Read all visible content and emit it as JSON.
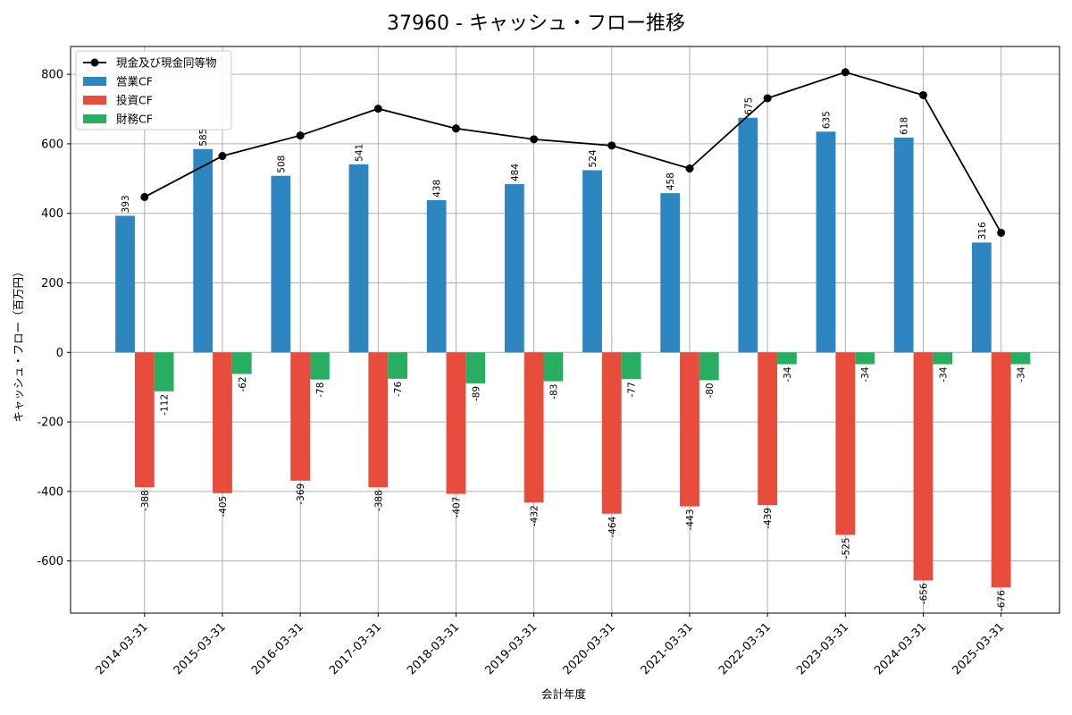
{
  "chart_data": {
    "type": "bar",
    "title": "37960 - キャッシュ・フロー推移",
    "xlabel": "会計年度",
    "ylabel": "キャッシュ・フロー（百万円）",
    "ylim": [
      -750,
      880
    ],
    "yticks": [
      -600,
      -400,
      -200,
      0,
      200,
      400,
      600,
      800
    ],
    "grid": true,
    "legend_position": "top-left",
    "categories": [
      "2014-03-31",
      "2015-03-31",
      "2016-03-31",
      "2017-03-31",
      "2018-03-31",
      "2019-03-31",
      "2020-03-31",
      "2021-03-31",
      "2022-03-31",
      "2023-03-31",
      "2024-03-31",
      "2025-03-31"
    ],
    "series": [
      {
        "name": "営業CF",
        "type": "bar",
        "color": "#2e86c1",
        "values": [
          393,
          585,
          508,
          541,
          438,
          484,
          524,
          458,
          675,
          635,
          618,
          316
        ]
      },
      {
        "name": "投資CF",
        "type": "bar",
        "color": "#e74c3c",
        "values": [
          -388,
          -405,
          -369,
          -388,
          -407,
          -432,
          -464,
          -443,
          -439,
          -525,
          -656,
          -676
        ]
      },
      {
        "name": "財務CF",
        "type": "bar",
        "color": "#27ae60",
        "values": [
          -112,
          -62,
          -78,
          -76,
          -89,
          -83,
          -77,
          -80,
          -34,
          -34,
          -34,
          -34
        ]
      }
    ],
    "line_series": {
      "name": "現金及び現金同等物",
      "type": "line",
      "color": "#000000",
      "values": [
        447,
        565,
        624,
        701,
        644,
        613,
        595,
        529,
        731,
        806,
        740,
        344
      ]
    }
  }
}
